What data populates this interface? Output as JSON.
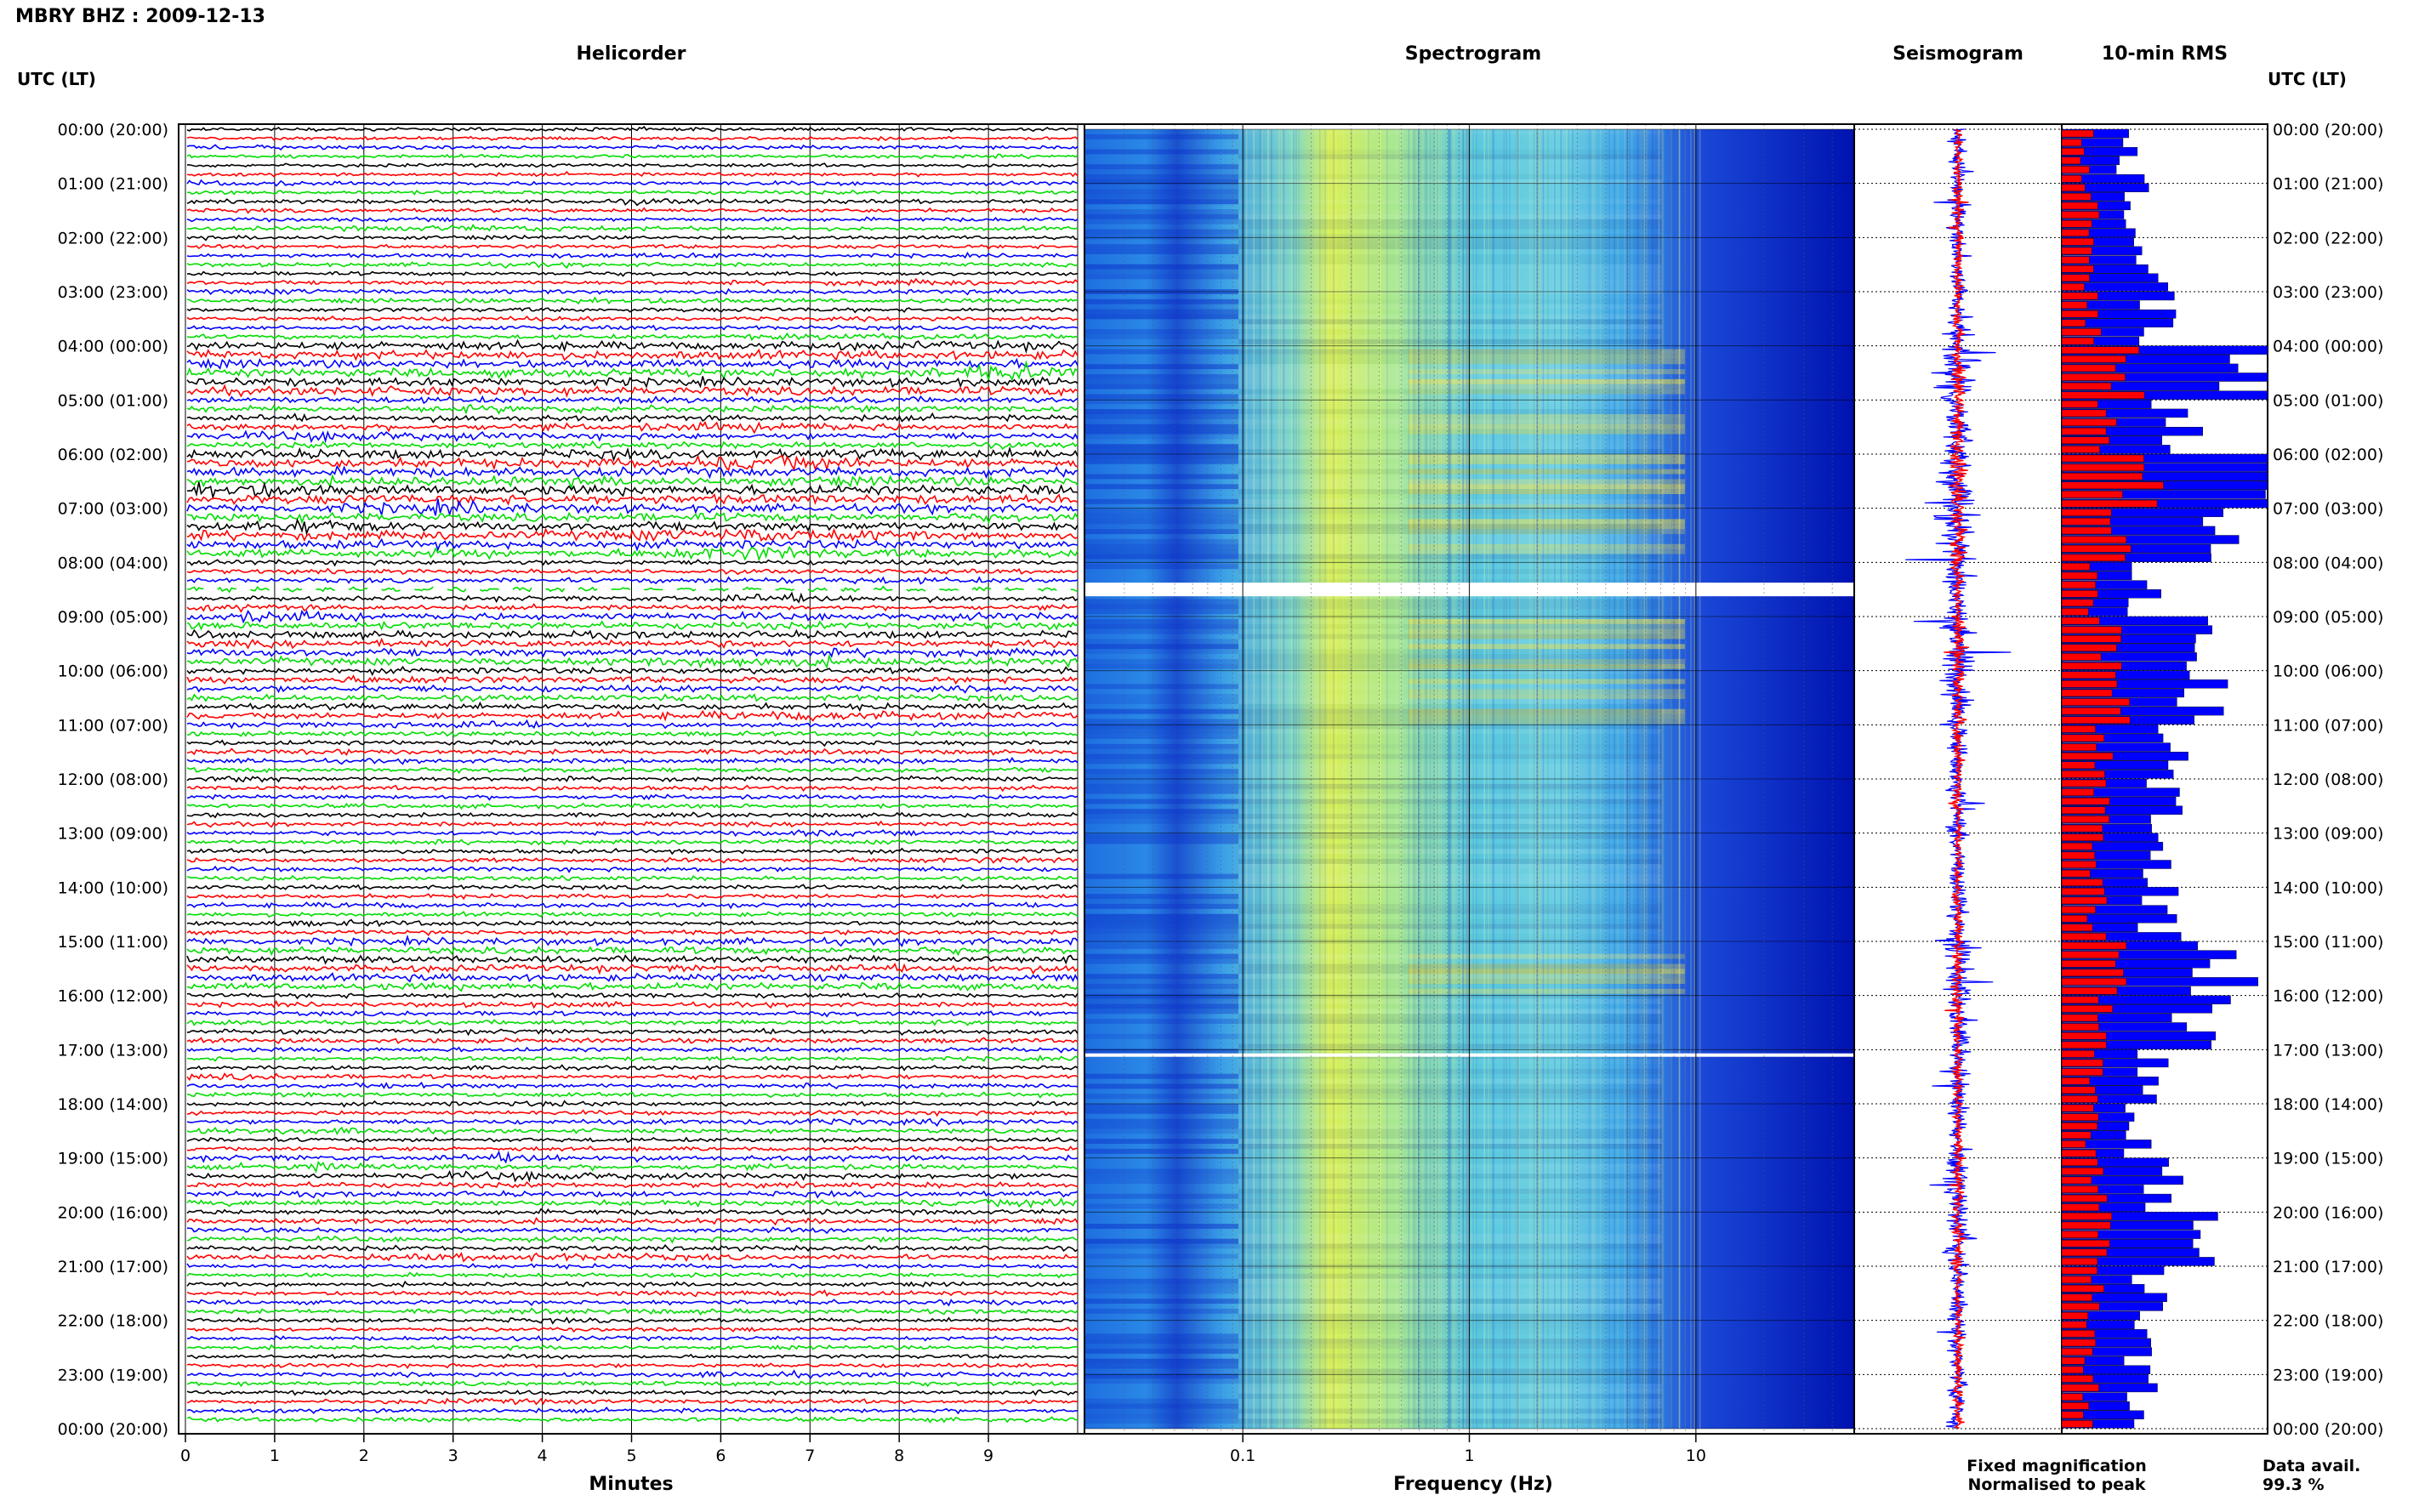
{
  "header": {
    "station_title": "MBRY BHZ : 2009-12-13",
    "utc_label_left": "UTC (LT)",
    "utc_label_right": "UTC (LT)"
  },
  "panels": {
    "helicorder_title": "Helicorder",
    "spectrogram_title": "Spectrogram",
    "seismogram_title": "Seismogram",
    "rms_title": "10-min RMS"
  },
  "footer": {
    "helicorder_xlabel": "Minutes",
    "spectrogram_xlabel": "Frequency (Hz)",
    "legend_fixed": "Fixed magnification",
    "legend_normalised": "Normalised to peak",
    "data_avail_label": "Data avail.",
    "data_avail_value": "99.3 %"
  },
  "colors": {
    "helicorder_traces": [
      "#000000",
      "#ff0000",
      "#0000ff",
      "#00dd00"
    ],
    "fixed": "#0000ff",
    "normalised": "#ff0000",
    "spectrogram_low": "#0020c0",
    "spectrogram_mid": "#40c8e8",
    "spectrogram_high": "#e8f040"
  },
  "chart_data": [
    {
      "type": "line",
      "name_key": "helicorder",
      "xlabel": "Minutes",
      "x_ticks": [
        "0",
        "1",
        "2",
        "3",
        "4",
        "5",
        "6",
        "7",
        "8",
        "9"
      ],
      "xlim": [
        0,
        10
      ],
      "hour_labels_left": [
        "00:00 (20:00)",
        "01:00 (21:00)",
        "02:00 (22:00)",
        "03:00 (23:00)",
        "04:00 (00:00)",
        "05:00 (01:00)",
        "06:00 (02:00)",
        "07:00 (03:00)",
        "08:00 (04:00)",
        "09:00 (05:00)",
        "10:00 (06:00)",
        "11:00 (07:00)",
        "12:00 (08:00)",
        "13:00 (09:00)",
        "14:00 (10:00)",
        "15:00 (11:00)",
        "16:00 (12:00)",
        "17:00 (13:00)",
        "18:00 (14:00)",
        "19:00 (15:00)",
        "20:00 (16:00)",
        "21:00 (17:00)",
        "22:00 (18:00)",
        "23:00 (19:00)",
        "00:00 (20:00)"
      ],
      "lines_per_hour": 6,
      "hourly_amplitude": [
        0.25,
        0.3,
        0.3,
        0.35,
        0.9,
        0.6,
        1.0,
        0.9,
        0.4,
        0.75,
        0.6,
        0.4,
        0.35,
        0.35,
        0.35,
        0.7,
        0.4,
        0.35,
        0.35,
        0.5,
        0.45,
        0.35,
        0.3,
        0.35
      ],
      "data_gap_hour": 8.5
    },
    {
      "type": "heatmap",
      "name_key": "spectrogram",
      "xlabel": "Frequency (Hz)",
      "x_scale": "log",
      "xlim": [
        0.02,
        50
      ],
      "x_ticks": [
        "0.1",
        "1",
        "10"
      ],
      "ylim_hours": [
        0,
        24
      ],
      "gaps_hours": [
        8.5,
        17.1
      ]
    },
    {
      "type": "line",
      "name_key": "seismogram",
      "series": [
        {
          "name": "Fixed magnification",
          "role": "fixed"
        },
        {
          "name": "Normalised to peak",
          "role": "normalised"
        }
      ],
      "hourly_amplitude": [
        0.25,
        0.3,
        0.3,
        0.35,
        0.9,
        0.6,
        1.0,
        0.9,
        0.4,
        0.75,
        0.6,
        0.4,
        0.35,
        0.35,
        0.35,
        0.7,
        0.4,
        0.35,
        0.35,
        0.5,
        0.45,
        0.35,
        0.3,
        0.35
      ]
    },
    {
      "type": "bar",
      "name_key": "rms",
      "orientation": "horizontal",
      "bins_per_hour": 6,
      "hourly_rms_fixed": [
        0.33,
        0.38,
        0.42,
        0.45,
        0.92,
        0.55,
        0.97,
        0.75,
        0.42,
        0.62,
        0.68,
        0.55,
        0.52,
        0.5,
        0.48,
        0.78,
        0.68,
        0.42,
        0.38,
        0.5,
        0.62,
        0.42,
        0.38,
        0.38
      ],
      "hourly_rms_normalised": [
        0.12,
        0.14,
        0.15,
        0.16,
        0.32,
        0.22,
        0.4,
        0.3,
        0.15,
        0.25,
        0.26,
        0.2,
        0.18,
        0.18,
        0.17,
        0.3,
        0.25,
        0.16,
        0.14,
        0.2,
        0.22,
        0.16,
        0.14,
        0.14
      ]
    }
  ]
}
